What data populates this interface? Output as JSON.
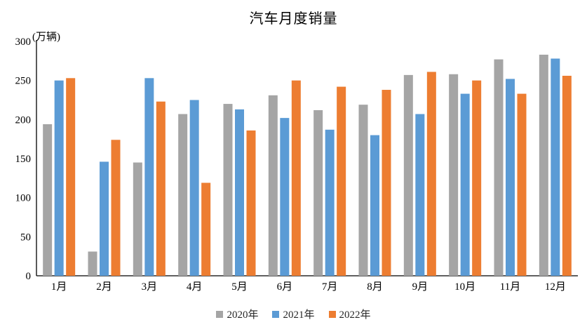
{
  "chart_data": {
    "type": "bar",
    "title": "汽车月度销量",
    "unit_label": "(万辆)",
    "categories": [
      "1月",
      "2月",
      "3月",
      "4月",
      "5月",
      "6月",
      "7月",
      "8月",
      "9月",
      "10月",
      "11月",
      "12月"
    ],
    "series": [
      {
        "name": "2020年",
        "color": "#A5A5A5",
        "values": [
          194,
          31,
          145,
          207,
          220,
          231,
          212,
          219,
          257,
          258,
          277,
          283
        ]
      },
      {
        "name": "2021年",
        "color": "#5B9BD5",
        "values": [
          250,
          146,
          253,
          225,
          213,
          202,
          187,
          180,
          207,
          233,
          252,
          278
        ]
      },
      {
        "name": "2022年",
        "color": "#ED7D31",
        "values": [
          253,
          174,
          223,
          119,
          186,
          250,
          242,
          238,
          261,
          250,
          233,
          256
        ]
      }
    ],
    "xlabel": "",
    "ylabel": "",
    "ylim": [
      0,
      300
    ],
    "y_ticks": [
      0,
      50,
      100,
      150,
      200,
      250,
      300
    ],
    "grid": false,
    "legend_position": "bottom",
    "axis_color": "#000000",
    "text_color": "#000000"
  }
}
